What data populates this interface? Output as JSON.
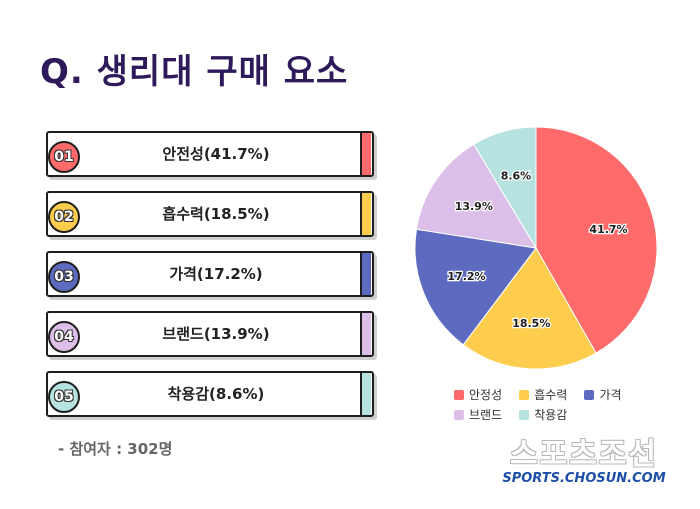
{
  "title": "Q. 생리대 구매 요소",
  "participants_note": "- 참여자 : 302명",
  "ranking": [
    {
      "num": "01",
      "label": "안전성(41.7%)",
      "color": "#ff6b6b"
    },
    {
      "num": "02",
      "label": "흡수력(18.5%)",
      "color": "#ffcd4d"
    },
    {
      "num": "03",
      "label": "가격(17.2%)",
      "color": "#5c6bc0"
    },
    {
      "num": "04",
      "label": "브랜드(13.9%)",
      "color": "#dcbfe8"
    },
    {
      "num": "05",
      "label": "착용감(8.6%)",
      "color": "#b6e3df"
    }
  ],
  "chart_data": {
    "type": "pie",
    "title": "",
    "slices": [
      {
        "label": "안정성",
        "value": 41.7,
        "value_label": "41.7%",
        "color": "#ff6b6b"
      },
      {
        "label": "흡수력",
        "value": 18.5,
        "value_label": "18.5%",
        "color": "#ffcd4d"
      },
      {
        "label": "가격",
        "value": 17.2,
        "value_label": "17.2%",
        "color": "#5c6bc0"
      },
      {
        "label": "브랜드",
        "value": 13.9,
        "value_label": "13.9%",
        "color": "#dcbfe8"
      },
      {
        "label": "착용감",
        "value": 8.6,
        "value_label": "8.6%",
        "color": "#b6e3df"
      }
    ],
    "start_direction": "12 o'clock",
    "order": "clockwise",
    "legend_position": "bottom"
  },
  "logo": {
    "korean": "스포츠조선",
    "url": "SPORTS.CHOSUN.COM"
  }
}
